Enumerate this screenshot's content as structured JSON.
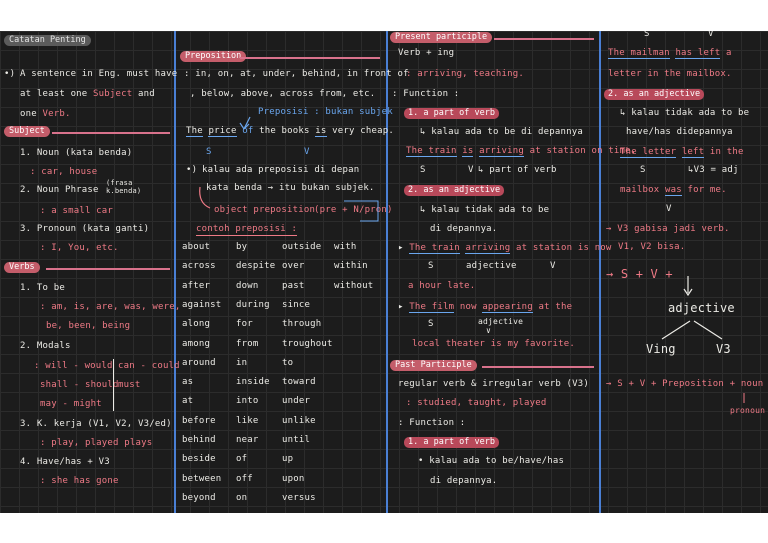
{
  "col1": {
    "catatan_header": "Catatan Penting",
    "sentence_line1": "A sentence in Eng. must have",
    "sentence_line2a": "at least one",
    "sentence_subject": "Subject",
    "sentence_and": "and",
    "sentence_line3a": "one",
    "sentence_verb": "Verb.",
    "subject_header": "Subject",
    "noun": "1. Noun (kata benda)",
    "noun_ex": ": car, house",
    "noun_phrase": "2. Noun Phrase",
    "noun_phrase_note1": "(frasa",
    "noun_phrase_note2": "k.benda)",
    "noun_phrase_ex": ": a small car",
    "pronoun": "3. Pronoun (kata ganti)",
    "pronoun_ex": ": I, You, etc.",
    "verbs_header": "Verbs",
    "tobe": "1. To be",
    "tobe_ex1": ": am, is, are, was, were,",
    "tobe_ex2": "be, been, being",
    "modals": "2. Modals",
    "modals_l1a": ": will - would",
    "modals_l1b": "can - could",
    "modals_l2a": "shall - should",
    "modals_l2b": "must",
    "modals_l3a": "may - might",
    "kkerja": "3. K. kerja (V1, V2, V3/ed)",
    "kkerja_ex": ": play, played plays",
    "have": "4. Have/has + V3",
    "have_ex": ": she has gone"
  },
  "col2": {
    "preposition_header": "Preposition",
    "prep_l1": ": in, on, at, under, behind, in front of",
    "prep_l2": ", below, above, across from, etc.",
    "prep_note": "Preposisi : bukan subjek",
    "ex_the": "The",
    "ex_price": "price",
    "ex_of": "of",
    "ex_rest": "the books",
    "ex_is": "is",
    "ex_end": "very cheap.",
    "ex_s": "S",
    "ex_v": "V",
    "kalau_l1": "kalau ada preposisi di depan",
    "kalau_l2": "kata benda → itu bukan subjek.",
    "object_prep": "object preposition",
    "object_prep2": "(pre + N/pron)",
    "contoh": "contoh preposisi :",
    "words": [
      [
        "about",
        "by",
        "outside",
        "with"
      ],
      [
        "across",
        "despite",
        "over",
        "within"
      ],
      [
        "after",
        "down",
        "past",
        "without"
      ],
      [
        "against",
        "during",
        "since",
        ""
      ],
      [
        "along",
        "for",
        "through",
        ""
      ],
      [
        "among",
        "from",
        "troughout",
        ""
      ],
      [
        "around",
        "in",
        "to",
        ""
      ],
      [
        "as",
        "inside",
        "toward",
        ""
      ],
      [
        "at",
        "into",
        "under",
        ""
      ],
      [
        "before",
        "like",
        "unlike",
        ""
      ],
      [
        "behind",
        "near",
        "until",
        ""
      ],
      [
        "beside",
        "of",
        "up",
        ""
      ],
      [
        "between",
        "off",
        "upon",
        ""
      ],
      [
        "beyond",
        "on",
        "versus",
        ""
      ]
    ]
  },
  "col3": {
    "present_header": "Present participle",
    "verb_ing": "Verb + ing",
    "verb_ing_ex": ": arriving, teaching.",
    "function": ": Function :",
    "part_of_verb": "1. a part of verb",
    "pov_note": "↳ kalau ada to be di depannya",
    "train1_a": "The train",
    "train1_b": "is",
    "train1_c": "arriving",
    "train1_d": "at station on time.",
    "train1_s": "S",
    "train1_v": "V",
    "train1_note": "↳ part of verb",
    "adjective": "2. as an adjective",
    "adj_note1": "↳ kalau tidak ada to be",
    "adj_note2": "di depannya.",
    "train2_a": "The train",
    "train2_b": "arriving",
    "train2_c": "at station is now",
    "train2_s": "S",
    "train2_adj": "adjective",
    "train2_v": "V",
    "train2_d": "a hour late.",
    "film_a": "The film",
    "film_b": "now",
    "film_c": "appearing",
    "film_d": "at the",
    "film_s": "S",
    "film_adj": "adjective",
    "film_e": "local theater is my favorite.",
    "past_header": "Past Participle",
    "past_reg": "regular verb & irregular verb (V3)",
    "past_ex": ": studied, taught, played",
    "past_function": ": Function :",
    "past_pov": "1. a part of verb",
    "past_note1": "• kalau ada to be/have/has",
    "past_note2": "di depannya."
  },
  "col4": {
    "top_s": "S",
    "top_v": "V",
    "mailman_a": "The mailman",
    "mailman_b": "has left",
    "mailman_c": "a",
    "mailman_d": "letter in the mailbox.",
    "adj_header": "2. as an adjective",
    "adj_note1": "↳ kalau tidak ada to be",
    "adj_note2": "have/has didepannya",
    "letter_a": "The letter",
    "letter_b": "left",
    "letter_c": "in the",
    "letter_s": "S",
    "letter_v3": "↳V3 = adj",
    "mailbox_a": "mailbox",
    "mailbox_b": "was",
    "mailbox_c": "for me.",
    "mailbox_v": "V",
    "v3_note1": "→ V3 gabisa jadi verb.",
    "v3_note2": "V1, V2 bisa.",
    "formula1": "→ S + V +",
    "adjective_word": "adjective",
    "ving": "Ving",
    "v3": "V3",
    "formula2": "→ S + V + Preposition + noun",
    "pronoun_word": "pronoun"
  }
}
